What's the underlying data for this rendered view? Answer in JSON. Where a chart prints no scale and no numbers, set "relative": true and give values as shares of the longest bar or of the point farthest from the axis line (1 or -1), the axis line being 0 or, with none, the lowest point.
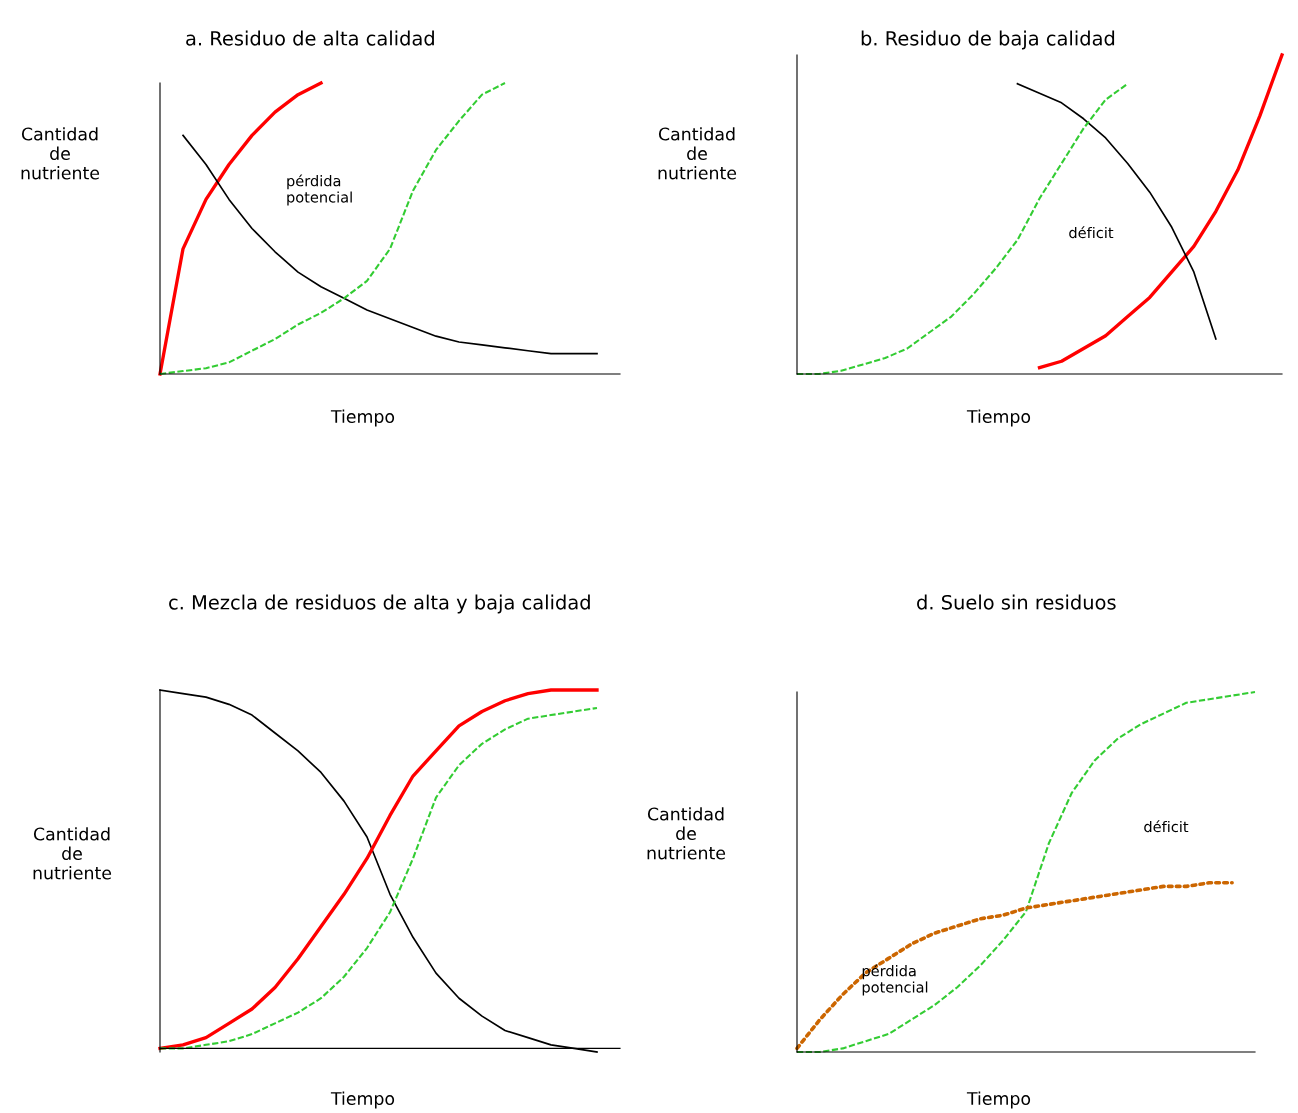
{
  "chart_data": [
    {
      "type": "line",
      "relative": true,
      "title": "a. Residuo de alta calidad",
      "xlabel": "Tiempo",
      "ylabel": "Cantidad\nde\nnutriente",
      "annotations": [
        "pérdida\npotencial"
      ],
      "categories": [
        null,
        null,
        null,
        null,
        null,
        null,
        null,
        null,
        null,
        null,
        null,
        null,
        null,
        null,
        null,
        null,
        null,
        null,
        null,
        null,
        null
      ],
      "series": [
        {
          "color": "#ff0000",
          "line_style": "solid",
          "values": [
            0,
            0.43,
            0.6,
            0.72,
            0.82,
            0.9,
            0.96,
            1.0,
            null,
            null,
            null,
            null,
            null,
            null,
            null,
            null,
            null,
            null,
            null,
            null,
            null
          ]
        },
        {
          "color": "#000000",
          "line_style": "solid",
          "values": [
            null,
            0.82,
            0.72,
            0.6,
            0.5,
            0.42,
            0.35,
            0.3,
            0.26,
            0.22,
            0.19,
            0.16,
            0.13,
            0.11,
            0.1,
            0.09,
            0.08,
            0.07,
            0.07,
            0.07,
            null
          ]
        },
        {
          "color": "#33cc33",
          "line_style": "dashed",
          "values": [
            0,
            0.01,
            0.02,
            0.04,
            0.08,
            0.12,
            0.17,
            0.21,
            0.26,
            0.32,
            0.43,
            0.63,
            0.77,
            0.87,
            0.96,
            1.0,
            null,
            null,
            null,
            null,
            null
          ]
        }
      ]
    },
    {
      "type": "line",
      "relative": true,
      "title": "b. Residuo de baja calidad",
      "xlabel": "Tiempo",
      "ylabel": "Cantidad\nde\nnutriente",
      "annotations": [
        "déficit"
      ],
      "categories": [
        null,
        null,
        null,
        null,
        null,
        null,
        null,
        null,
        null,
        null,
        null,
        null,
        null,
        null,
        null,
        null,
        null,
        null,
        null,
        null,
        null,
        null,
        null
      ],
      "series": [
        {
          "color": "#ff0000",
          "line_style": "solid",
          "values": [
            null,
            null,
            null,
            null,
            null,
            null,
            null,
            null,
            null,
            null,
            null,
            0.02,
            0.04,
            0.08,
            0.12,
            0.18,
            0.24,
            0.32,
            0.4,
            0.51,
            0.64,
            0.81,
            1.0
          ]
        },
        {
          "color": "#000000",
          "line_style": "solid",
          "values": [
            null,
            null,
            null,
            null,
            null,
            null,
            null,
            null,
            null,
            null,
            0.91,
            0.88,
            0.85,
            0.8,
            0.74,
            0.66,
            0.57,
            0.46,
            0.32,
            0.11,
            null,
            null,
            null
          ]
        },
        {
          "color": "#33cc33",
          "line_style": "dashed",
          "values": [
            0,
            0,
            0.01,
            0.03,
            0.05,
            0.08,
            0.13,
            0.18,
            0.25,
            0.33,
            0.42,
            0.55,
            0.66,
            0.77,
            0.86,
            0.91,
            null,
            null,
            null,
            null,
            null,
            null,
            null
          ]
        }
      ]
    },
    {
      "type": "line",
      "relative": true,
      "title": "c. Mezcla de residuos de alta y baja calidad",
      "xlabel": "Tiempo",
      "ylabel": "Cantidad\nde\nnutriente",
      "categories": [
        null,
        null,
        null,
        null,
        null,
        null,
        null,
        null,
        null,
        null,
        null,
        null,
        null,
        null,
        null,
        null,
        null,
        null,
        null,
        null,
        null
      ],
      "series": [
        {
          "color": "#000000",
          "line_style": "solid",
          "values": [
            1.0,
            0.99,
            0.98,
            0.96,
            0.93,
            0.88,
            0.83,
            0.77,
            0.69,
            0.59,
            0.43,
            0.31,
            0.21,
            0.14,
            0.09,
            0.05,
            0.03,
            0.01,
            0,
            -0.01,
            null
          ]
        },
        {
          "color": "#ff0000",
          "line_style": "solid",
          "values": [
            0,
            0.01,
            0.03,
            0.07,
            0.11,
            0.17,
            0.25,
            0.34,
            0.43,
            0.53,
            0.65,
            0.76,
            0.83,
            0.9,
            0.94,
            0.97,
            0.99,
            1.0,
            1.0,
            1.0,
            null
          ]
        },
        {
          "color": "#33cc33",
          "line_style": "dashed",
          "values": [
            0,
            0,
            0.01,
            0.02,
            0.04,
            0.07,
            0.1,
            0.14,
            0.2,
            0.28,
            0.38,
            0.53,
            0.7,
            0.79,
            0.85,
            0.89,
            0.92,
            0.93,
            0.94,
            0.95,
            null
          ]
        }
      ]
    },
    {
      "type": "line",
      "relative": true,
      "title": "d. Suelo sin residuos",
      "xlabel": "Tiempo",
      "ylabel": "Cantidad\nde\nnutriente",
      "annotations": [
        "déficit",
        "pérdida\npotencial"
      ],
      "categories": [
        null,
        null,
        null,
        null,
        null,
        null,
        null,
        null,
        null,
        null,
        null,
        null,
        null,
        null,
        null,
        null,
        null,
        null,
        null,
        null,
        null
      ],
      "series": [
        {
          "color": "#33cc33",
          "line_style": "dashed",
          "values": [
            0,
            0,
            0.01,
            0.03,
            0.05,
            0.09,
            0.13,
            0.18,
            0.24,
            0.31,
            0.39,
            0.58,
            0.72,
            0.81,
            0.87,
            0.91,
            0.94,
            0.97,
            0.98,
            0.99,
            1.0
          ]
        },
        {
          "color": "#cc6600",
          "line_style": "dotted",
          "values": [
            0.01,
            0.09,
            0.16,
            0.22,
            0.26,
            0.3,
            0.33,
            0.35,
            0.37,
            0.38,
            0.4,
            0.41,
            0.42,
            0.43,
            0.44,
            0.45,
            0.46,
            0.46,
            0.47,
            0.47,
            null
          ]
        }
      ]
    }
  ]
}
